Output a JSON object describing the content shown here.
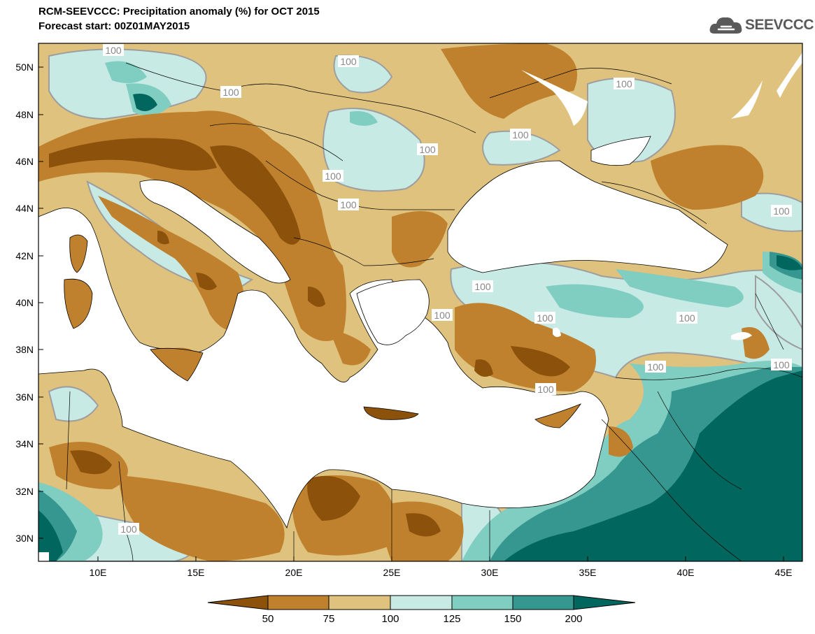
{
  "header": {
    "title": "RCM-SEEVCCC: Precipitation anomaly (%) for OCT 2015",
    "subtitle": "Forecast start: 00Z01MAY2015",
    "logo_text": "SEEVCCC"
  },
  "map": {
    "lat_labels": [
      "50N",
      "48N",
      "46N",
      "44N",
      "42N",
      "40N",
      "38N",
      "36N",
      "34N",
      "32N",
      "30N"
    ],
    "lon_labels": [
      "10E",
      "15E",
      "20E",
      "25E",
      "30E",
      "35E",
      "40E",
      "45E"
    ],
    "contour_label": "100"
  },
  "legend": {
    "ticks": [
      "50",
      "75",
      "100",
      "125",
      "150",
      "200"
    ],
    "colors": [
      "#8c510a",
      "#bf812d",
      "#dfc27d",
      "#c7eae5",
      "#80cdc1",
      "#35978f",
      "#01665e"
    ]
  }
}
